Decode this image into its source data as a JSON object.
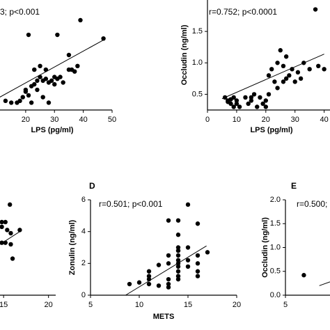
{
  "chart_data": [
    {
      "type": "scatter",
      "annotation": "3; p<0.001",
      "x_label": "LPS (pg/ml)",
      "x": [
        10,
        13,
        15,
        17,
        18,
        19,
        20,
        20,
        21,
        21,
        22,
        22,
        23,
        24,
        25,
        25,
        26,
        27,
        27,
        28,
        29,
        30,
        30,
        31,
        31,
        32,
        33,
        35,
        35,
        36,
        37,
        38,
        39,
        47,
        23,
        24,
        26,
        28
      ],
      "values": [
        0.7,
        0.5,
        0.4,
        0.4,
        0.5,
        0.7,
        1.0,
        1.1,
        4.1,
        0.8,
        1.3,
        0.4,
        1.4,
        1.6,
        1.8,
        2.4,
        1.6,
        2.2,
        1.7,
        1.5,
        1.6,
        1.8,
        1.4,
        4.1,
        1.7,
        1.8,
        1.5,
        2.2,
        3.0,
        2.2,
        2.1,
        2.4,
        4.9,
        3.9,
        2.2,
        1.1,
        0.7,
        0.4
      ],
      "trend": {
        "x": [
          11,
          46.8
        ],
        "values": [
          0.7,
          3.8
        ]
      },
      "xlim": [
        10,
        50
      ],
      "ylim": [
        0,
        6
      ],
      "xticks": [
        20,
        30,
        40,
        50
      ],
      "color": "#000000"
    },
    {
      "type": "scatter",
      "annotation": "r=0.752; p<0.0001",
      "x_label": "LPS (pg/ml)",
      "y_label": "Occludin (ng/ml)",
      "x": [
        6,
        7,
        7,
        8,
        8,
        9,
        9,
        10,
        10,
        11,
        13,
        14,
        15,
        15,
        16,
        17,
        18,
        19,
        20,
        20,
        21,
        21,
        22,
        23,
        24,
        24,
        25,
        26,
        26,
        27,
        27,
        28,
        29,
        30,
        31,
        32,
        33,
        35,
        37,
        38,
        40
      ],
      "values": [
        0.45,
        0.4,
        0.38,
        0.35,
        0.42,
        0.3,
        0.45,
        0.35,
        0.4,
        0.3,
        0.45,
        0.35,
        0.4,
        0.45,
        0.5,
        0.3,
        0.45,
        0.35,
        0.4,
        0.3,
        0.5,
        0.8,
        0.9,
        0.7,
        0.6,
        1.0,
        1.2,
        0.95,
        0.7,
        0.75,
        1.1,
        0.8,
        0.9,
        0.7,
        0.85,
        0.75,
        1.0,
        0.9,
        1.85,
        0.95,
        0.9
      ],
      "trend": {
        "x": [
          5,
          40
        ],
        "values": [
          0.43,
          1.14
        ]
      },
      "xlim": [
        0,
        42
      ],
      "ylim": [
        0.25,
        2.0
      ],
      "xticks": [
        0,
        10,
        20,
        30,
        40
      ],
      "yticks": [
        0.5,
        {
          "value": 1,
          "label": "1.0"
        },
        1.5
      ],
      "color": "#000000"
    },
    {
      "type": "scatter",
      "x": [
        15.7,
        14.8,
        15.2,
        14.8,
        15.4,
        15.8,
        14.8,
        15.2,
        15.8,
        16.8,
        16.0
      ],
      "values": [
        5.7,
        4.6,
        4.6,
        4.3,
        4.1,
        3.9,
        3.3,
        3.3,
        3.2,
        4.1,
        2.3
      ],
      "trend": {
        "x": [
          14.6,
          16.8
        ],
        "values": [
          3.2,
          4.0
        ]
      },
      "xlim": [
        14.6,
        20.8
      ],
      "ylim": [
        0,
        6
      ],
      "xticks": [
        15,
        20
      ],
      "color": "#000000"
    },
    {
      "type": "scatter",
      "panel_label": "D",
      "annotation": "r=0.501; p<0.001",
      "x_label": "METS",
      "y_label": "Zonulin (ng/ml)",
      "x": [
        9,
        10,
        11,
        11,
        11,
        11,
        12,
        12,
        13,
        13,
        13,
        13,
        13,
        13,
        14,
        14,
        14,
        14,
        14,
        14,
        14,
        14,
        14,
        14,
        14,
        15,
        15,
        15,
        15,
        16,
        16,
        16,
        16,
        16,
        17
      ],
      "values": [
        0.7,
        0.8,
        1.0,
        1.2,
        1.5,
        0.7,
        0.6,
        1.9,
        1.0,
        0.5,
        4.7,
        2.0,
        2.5,
        0.7,
        4.7,
        3.8,
        3.0,
        2.8,
        2.5,
        2.2,
        2.0,
        1.8,
        1.5,
        1.2,
        1.0,
        5.7,
        3.0,
        2.2,
        1.8,
        4.5,
        2.5,
        2.0,
        1.5,
        1.2,
        2.7
      ],
      "trend": {
        "x": [
          8.6,
          16.9
        ],
        "values": [
          0,
          3.1
        ]
      },
      "xlim": [
        5,
        20
      ],
      "ylim": [
        0,
        6
      ],
      "xticks": [
        5,
        10,
        15,
        20
      ],
      "yticks": [
        0,
        2,
        4,
        6
      ],
      "color": "#000000"
    },
    {
      "type": "scatter",
      "panel_label": "E",
      "annotation": "r=0.500;",
      "y_label": "Occludin (ng/ml)",
      "x": [
        6.9
      ],
      "values": [
        0.42
      ],
      "trend": {
        "x": [
          8.5,
          9.6
        ],
        "values": [
          0.2,
          0.28
        ]
      },
      "xlim": [
        5,
        9.6
      ],
      "ylim": [
        0,
        2
      ],
      "xticks": [
        5
      ],
      "yticks": [
        {
          "value": 0,
          "label": "0.0"
        },
        0.5,
        {
          "value": 1,
          "label": "1.0"
        },
        1.5,
        {
          "value": 2,
          "label": "2.0"
        }
      ],
      "color": "#000000"
    }
  ]
}
